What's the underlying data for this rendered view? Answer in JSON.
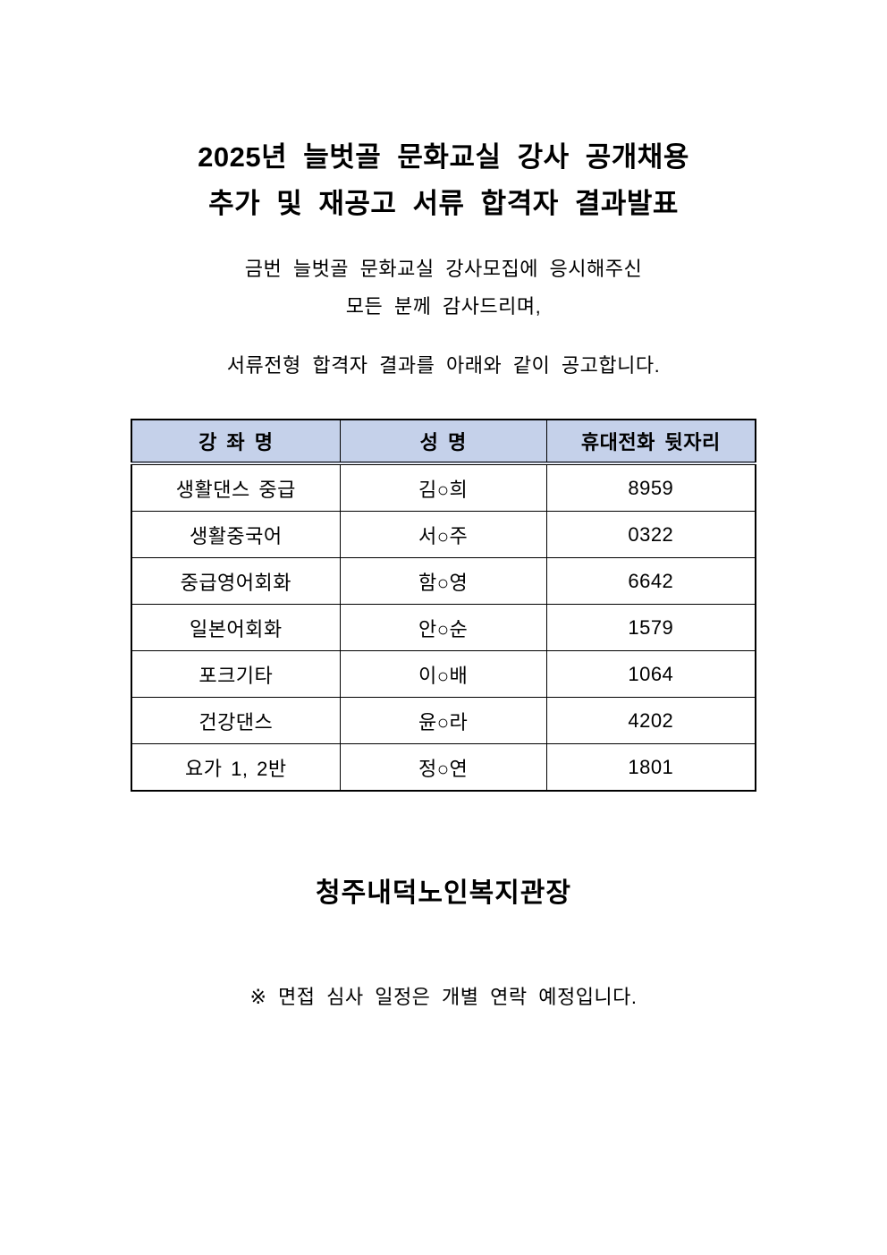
{
  "document": {
    "title_line1": "2025년 늘벗골 문화교실 강사 공개채용",
    "title_line2": "추가 및 재공고 서류 합격자 결과발표",
    "intro_line1": "금번 늘벗골 문화교실 강사모집에 응시해주신",
    "intro_line2": "모든 분께 감사드리며,",
    "intro_line3": "서류전형 합격자 결과를 아래와 같이 공고합니다.",
    "signature": "청주내덕노인복지관장",
    "footnote": "※ 면접 심사 일정은 개별 연락 예정입니다."
  },
  "table": {
    "headers": [
      "강 좌 명",
      "성 명",
      "휴대전화 뒷자리"
    ],
    "rows": [
      [
        "생활댄스 중급",
        "김○희",
        "8959"
      ],
      [
        "생활중국어",
        "서○주",
        "0322"
      ],
      [
        "중급영어회화",
        "함○영",
        "6642"
      ],
      [
        "일본어회화",
        "안○순",
        "1579"
      ],
      [
        "포크기타",
        "이○배",
        "1064"
      ],
      [
        "건강댄스",
        "윤○라",
        "4202"
      ],
      [
        "요가 1, 2반",
        "정○연",
        "1801"
      ]
    ]
  },
  "colors": {
    "header_bg": "#c5d1ea",
    "border": "#000000",
    "text": "#000000",
    "page_bg": "#ffffff"
  }
}
